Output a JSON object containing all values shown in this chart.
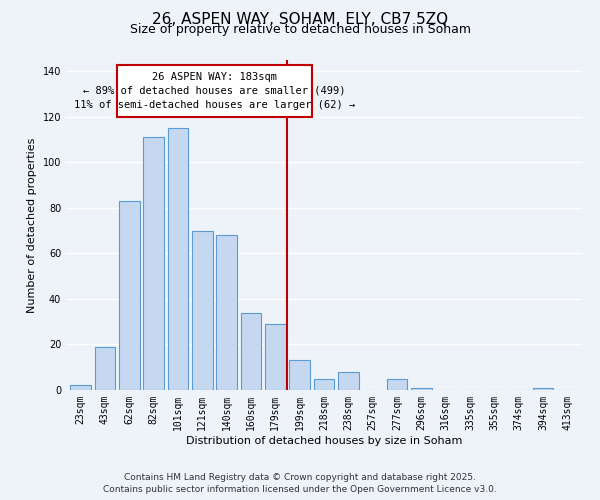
{
  "title": "26, ASPEN WAY, SOHAM, ELY, CB7 5ZQ",
  "subtitle": "Size of property relative to detached houses in Soham",
  "xlabel": "Distribution of detached houses by size in Soham",
  "ylabel": "Number of detached properties",
  "bar_labels": [
    "23sqm",
    "43sqm",
    "62sqm",
    "82sqm",
    "101sqm",
    "121sqm",
    "140sqm",
    "160sqm",
    "179sqm",
    "199sqm",
    "218sqm",
    "238sqm",
    "257sqm",
    "277sqm",
    "296sqm",
    "316sqm",
    "335sqm",
    "355sqm",
    "374sqm",
    "394sqm",
    "413sqm"
  ],
  "bar_values": [
    2,
    19,
    83,
    111,
    115,
    70,
    68,
    34,
    29,
    13,
    5,
    8,
    0,
    5,
    1,
    0,
    0,
    0,
    0,
    1,
    0
  ],
  "bar_color": "#c5d8f0",
  "bar_edge_color": "#5b9bd5",
  "ylim": [
    0,
    145
  ],
  "yticks": [
    0,
    20,
    40,
    60,
    80,
    100,
    120,
    140
  ],
  "property_line_x": 8.5,
  "property_line_color": "#c00000",
  "annotation_line1": "26 ASPEN WAY: 183sqm",
  "annotation_line2": "← 89% of detached houses are smaller (499)",
  "annotation_line3": "11% of semi-detached houses are larger (62) →",
  "footer_line1": "Contains HM Land Registry data © Crown copyright and database right 2025.",
  "footer_line2": "Contains public sector information licensed under the Open Government Licence v3.0.",
  "background_color": "#eef2f9",
  "grid_color": "#ffffff",
  "title_fontsize": 11,
  "subtitle_fontsize": 9,
  "axis_label_fontsize": 8,
  "tick_fontsize": 7,
  "annotation_fontsize": 7.5,
  "footer_fontsize": 6.5
}
